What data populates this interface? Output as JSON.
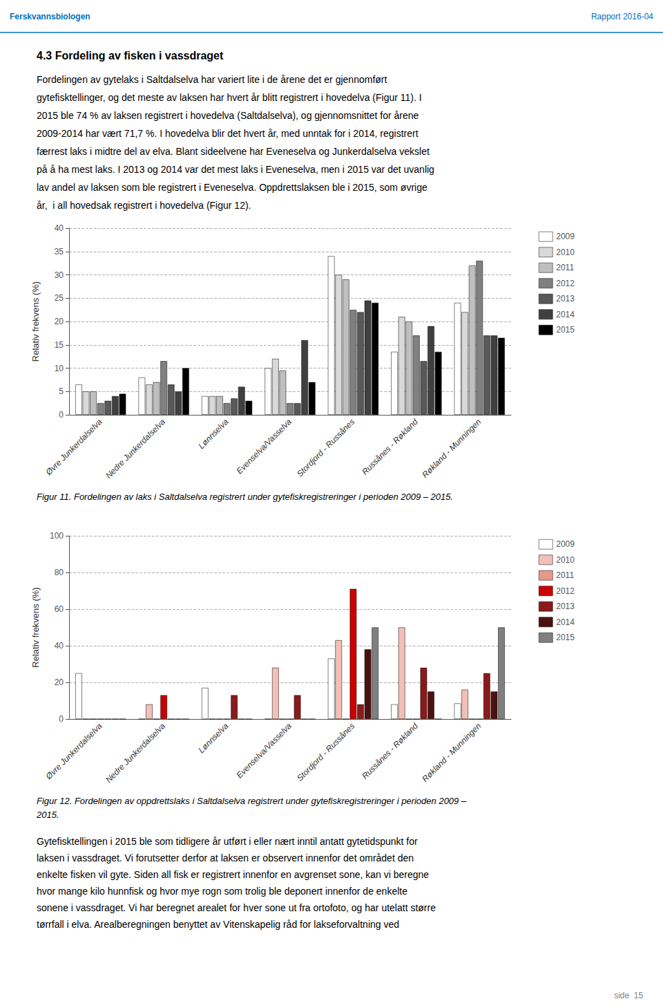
{
  "header_left": "Ferskvannsbiologen",
  "header_right": "Rapport 2016-04",
  "section_title": "4.3 Fordeling av fisken i vassdraget",
  "body": [
    "Fordelingen av gytelaks i Saltdalselva har variert lite i de årene det er gjennomført",
    "gytefisktellinger, og det meste av laksen har hvert år blitt registrert i hovedelva (Figur 11). I",
    "2015 ble 74 % av laksen registrert i hovedelva (Saltdalselva), og gjennomsnittet for årene",
    "2009-2014 har vært 71,7 %. I hovedelva blir det hvert år, med unntak for i 2014, registrert",
    "færrest laks i midtre del av elva. Blant sideelvene har Eveneselva og Junkerdalselva vekslet",
    "på å ha mest laks. I 2013 og 2014 var det mest laks i Eveneselva, men i 2015 var det uvanlig",
    "lav andel av laksen som ble registrert i Eveneselva. Oppdrettslaksen ble i 2015, som øvrige",
    "år,  i all hovedsak registrert i hovedelva (Figur 12)."
  ],
  "footer": [
    "Gytefisktellingen i 2015 ble som tidligere år utført i eller nært inntil antatt gytetidspunkt for",
    "laksen i vassdraget. Vi forutsetter derfor at laksen er observert innenfor det området den",
    "enkelte fisken vil gyte. Siden all fisk er registrert innenfor en avgrenset sone, kan vi beregne",
    "hvor mange kilo hunnfisk og hvor mye rogn som trolig ble deponert innenfor de enkelte",
    "sonene i vassdraget. Vi har beregnet arealet for hver sone ut fra ortofoto, og har utelatt større",
    "tørrfall i elva. Arealberegningen benyttet av Vitenskapelig råd for lakseforvaltning ved"
  ],
  "page_number": "side  15",
  "chart_data": [
    {
      "type": "bar",
      "categories": [
        "Øvre Junkerdalselva",
        "Nedre Junkerdalselva",
        "Lønnselva",
        "Evenselva/Vasselva",
        "Stordjord - Russånes",
        "Russånes - Røkland",
        "Røkland - Munningen"
      ],
      "ylabel": "Relativ frekvens (%)",
      "ylim": [
        0,
        40
      ],
      "yticks": [
        0,
        5,
        10,
        15,
        20,
        25,
        30,
        35,
        40
      ],
      "grid": true,
      "legend": "upper right",
      "series": [
        {
          "name": "2009",
          "color": "#ffffff",
          "values": [
            6.5,
            8.0,
            4.0,
            10.0,
            34.0,
            13.5,
            24.0
          ]
        },
        {
          "name": "2010",
          "color": "#d9d9d9",
          "values": [
            5.0,
            6.5,
            4.0,
            12.0,
            30.0,
            21.0,
            22.0
          ]
        },
        {
          "name": "2011",
          "color": "#bfbfbf",
          "values": [
            5.0,
            7.0,
            4.0,
            9.5,
            29.0,
            20.0,
            32.0
          ]
        },
        {
          "name": "2012",
          "color": "#808080",
          "values": [
            2.5,
            11.5,
            2.5,
            2.5,
            22.5,
            17.0,
            33.0
          ]
        },
        {
          "name": "2013",
          "color": "#595959",
          "values": [
            3.0,
            6.5,
            3.5,
            2.5,
            22.0,
            11.5,
            17.0
          ]
        },
        {
          "name": "2014",
          "color": "#404040",
          "values": [
            4.0,
            5.0,
            6.0,
            16.0,
            24.5,
            19.0,
            17.0
          ]
        },
        {
          "name": "2015",
          "color": "#000000",
          "values": [
            4.5,
            10.0,
            3.0,
            7.0,
            24.0,
            13.5,
            16.5
          ]
        }
      ],
      "caption": [
        "Figur 11. Fordelingen av laks i Saltdalselva registrert under gytefiskregistreringer i perioden 2009 – 2015."
      ]
    },
    {
      "type": "bar",
      "categories": [
        "Øvre Junkerdalselva",
        "Nedre Junkerdalselva",
        "Lønnselva",
        "Evenselva/Vasselva",
        "Stordjord - Russånes",
        "Russånes - Røkland",
        "Røkland - Munningen"
      ],
      "ylabel": "Relativ frekvens (%)",
      "ylim": [
        0,
        100
      ],
      "yticks": [
        0,
        20,
        40,
        60,
        80,
        100
      ],
      "grid": true,
      "legend": "upper right",
      "series": [
        {
          "name": "2009",
          "color": "#ffffff",
          "values": [
            25.0,
            0,
            17.0,
            0,
            33.0,
            8.0,
            8.5
          ]
        },
        {
          "name": "2010",
          "color": "#f2c0b8",
          "values": [
            0,
            8.0,
            0,
            28.0,
            43.0,
            50.0,
            16.0
          ]
        },
        {
          "name": "2011",
          "color": "#e8998a",
          "values": [
            0,
            0,
            0,
            0,
            0,
            0,
            0
          ]
        },
        {
          "name": "2012",
          "color": "#cc0000",
          "values": [
            0,
            13.0,
            0,
            0,
            71.0,
            0,
            0
          ]
        },
        {
          "name": "2013",
          "color": "#8b1a1a",
          "values": [
            0,
            0,
            13.0,
            13.0,
            8.0,
            28.0,
            25.0
          ]
        },
        {
          "name": "2014",
          "color": "#4d1010",
          "values": [
            0,
            0,
            0,
            0,
            38.0,
            15.0,
            15.0
          ]
        },
        {
          "name": "2015",
          "color": "#808080",
          "values": [
            0,
            0,
            0,
            0,
            50.0,
            0,
            50.0
          ]
        }
      ],
      "caption": [
        "Figur 12. Fordelingen av oppdrettslaks i Saltdalselva registrert under gytefiskregistreringer i perioden 2009 –",
        "2015."
      ]
    }
  ]
}
